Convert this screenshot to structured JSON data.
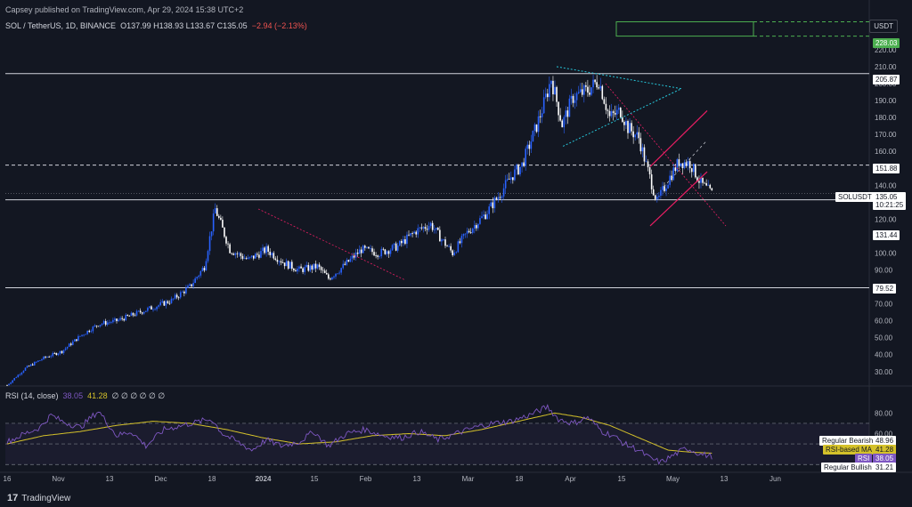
{
  "header": {
    "publisher": "Capsey published on TradingView.com, Apr 29, 2024 15:38 UTC+2"
  },
  "symbol": {
    "name": "SOL / TetherUS, 1D, BINANCE",
    "ohlc": "O137.99  H138.93  L133.67  C135.05",
    "change": "−2.94 (−2.13%)"
  },
  "currency_label": "USDT",
  "brand": {
    "logo": "17",
    "name": "TradingView"
  },
  "rsi_panel": {
    "label": "RSI (14, close)",
    "rsi_value": "38.05",
    "ma_value": "41.28",
    "extra": "∅ ∅ ∅ ∅ ∅ ∅"
  },
  "price_tags": {
    "target": "228.03",
    "resist1": "205.87",
    "resist2": "151.88",
    "symbol_tag": "SOLUSDT",
    "last": "135.05",
    "countdown": "10:21:25",
    "support1": "131.44",
    "support2": "79.52"
  },
  "rsi_tags": {
    "bearish_label": "Regular Bearish",
    "bearish_value": "48.96",
    "ma_label": "RSI-based MA",
    "ma_value": "41.28",
    "rsi_label": "RSI",
    "rsi_value": "38.05",
    "bullish_label": "Regular Bullish",
    "bullish_value": "31.21"
  },
  "colors": {
    "up": "#2962ff",
    "down": "#ffffff",
    "rsi": "#7e57c2",
    "rsi_ma": "#d4c12a",
    "trend_pink": "#e91e63",
    "triangle": "#26c6da",
    "target_box": "#4caf50",
    "bg": "#131722"
  },
  "chart_data": {
    "type": "candlestick",
    "price_axis": {
      "ticks": [
        30,
        40,
        50,
        60,
        70,
        80,
        90,
        100,
        110,
        120,
        130,
        140,
        150,
        160,
        170,
        180,
        190,
        200,
        210,
        220
      ],
      "range": [
        22,
        242
      ]
    },
    "rsi_axis": {
      "ticks": [
        40,
        60,
        80
      ],
      "range": [
        25,
        95
      ]
    },
    "x_ticks": [
      "16",
      "Nov",
      "13",
      "Dec",
      "18",
      "2024",
      "15",
      "Feb",
      "13",
      "Mar",
      "18",
      "Apr",
      "15",
      "May",
      "13",
      "Jun"
    ],
    "horizontal_levels": [
      205.87,
      151.88,
      131.44,
      79.52
    ],
    "rsi_bands": {
      "upper": 70,
      "middle": 50,
      "lower": 30
    },
    "price_anchors": [
      [
        0,
        22
      ],
      [
        10,
        32
      ],
      [
        20,
        38
      ],
      [
        30,
        42
      ],
      [
        40,
        51
      ],
      [
        50,
        58
      ],
      [
        60,
        60
      ],
      [
        70,
        64
      ],
      [
        80,
        68
      ],
      [
        90,
        72
      ],
      [
        100,
        80
      ],
      [
        108,
        92
      ],
      [
        114,
        126
      ],
      [
        122,
        102
      ],
      [
        132,
        96
      ],
      [
        142,
        102
      ],
      [
        152,
        94
      ],
      [
        160,
        90
      ],
      [
        170,
        92
      ],
      [
        176,
        85
      ],
      [
        184,
        92
      ],
      [
        194,
        102
      ],
      [
        204,
        100
      ],
      [
        214,
        104
      ],
      [
        224,
        113
      ],
      [
        232,
        117
      ],
      [
        238,
        108
      ],
      [
        244,
        100
      ],
      [
        252,
        112
      ],
      [
        262,
        123
      ],
      [
        270,
        135
      ],
      [
        276,
        145
      ],
      [
        282,
        152
      ],
      [
        290,
        175
      ],
      [
        294,
        188
      ],
      [
        298,
        203
      ],
      [
        304,
        176
      ],
      [
        310,
        192
      ],
      [
        318,
        196
      ],
      [
        324,
        202
      ],
      [
        330,
        180
      ],
      [
        336,
        184
      ],
      [
        340,
        174
      ],
      [
        346,
        168
      ],
      [
        350,
        152
      ],
      [
        356,
        130
      ],
      [
        362,
        143
      ],
      [
        368,
        154
      ],
      [
        374,
        153
      ],
      [
        380,
        141
      ],
      [
        386,
        135
      ]
    ],
    "rsi_anchors": [
      [
        0,
        52
      ],
      [
        10,
        60
      ],
      [
        18,
        66
      ],
      [
        24,
        78
      ],
      [
        30,
        72
      ],
      [
        40,
        66
      ],
      [
        50,
        82
      ],
      [
        60,
        58
      ],
      [
        68,
        62
      ],
      [
        76,
        48
      ],
      [
        86,
        64
      ],
      [
        96,
        68
      ],
      [
        106,
        72
      ],
      [
        112,
        74
      ],
      [
        118,
        60
      ],
      [
        126,
        52
      ],
      [
        134,
        44
      ],
      [
        142,
        54
      ],
      [
        150,
        48
      ],
      [
        160,
        52
      ],
      [
        168,
        62
      ],
      [
        176,
        48
      ],
      [
        186,
        60
      ],
      [
        196,
        64
      ],
      [
        206,
        58
      ],
      [
        216,
        56
      ],
      [
        226,
        62
      ],
      [
        236,
        54
      ],
      [
        246,
        60
      ],
      [
        256,
        66
      ],
      [
        266,
        70
      ],
      [
        276,
        72
      ],
      [
        286,
        78
      ],
      [
        296,
        86
      ],
      [
        302,
        74
      ],
      [
        310,
        70
      ],
      [
        318,
        76
      ],
      [
        326,
        62
      ],
      [
        332,
        58
      ],
      [
        338,
        50
      ],
      [
        346,
        44
      ],
      [
        352,
        36
      ],
      [
        358,
        32
      ],
      [
        366,
        40
      ],
      [
        372,
        46
      ],
      [
        380,
        40
      ],
      [
        386,
        38
      ]
    ],
    "rsi_ma_anchors": [
      [
        0,
        50
      ],
      [
        20,
        58
      ],
      [
        40,
        62
      ],
      [
        60,
        68
      ],
      [
        80,
        72
      ],
      [
        100,
        70
      ],
      [
        120,
        64
      ],
      [
        140,
        56
      ],
      [
        160,
        50
      ],
      [
        180,
        52
      ],
      [
        200,
        58
      ],
      [
        220,
        60
      ],
      [
        240,
        58
      ],
      [
        260,
        64
      ],
      [
        280,
        72
      ],
      [
        300,
        80
      ],
      [
        314,
        76
      ],
      [
        330,
        68
      ],
      [
        346,
        56
      ],
      [
        362,
        44
      ],
      [
        374,
        42
      ],
      [
        386,
        41
      ]
    ],
    "bars": 387,
    "target_box": [
      228.03,
      236.5
    ]
  }
}
